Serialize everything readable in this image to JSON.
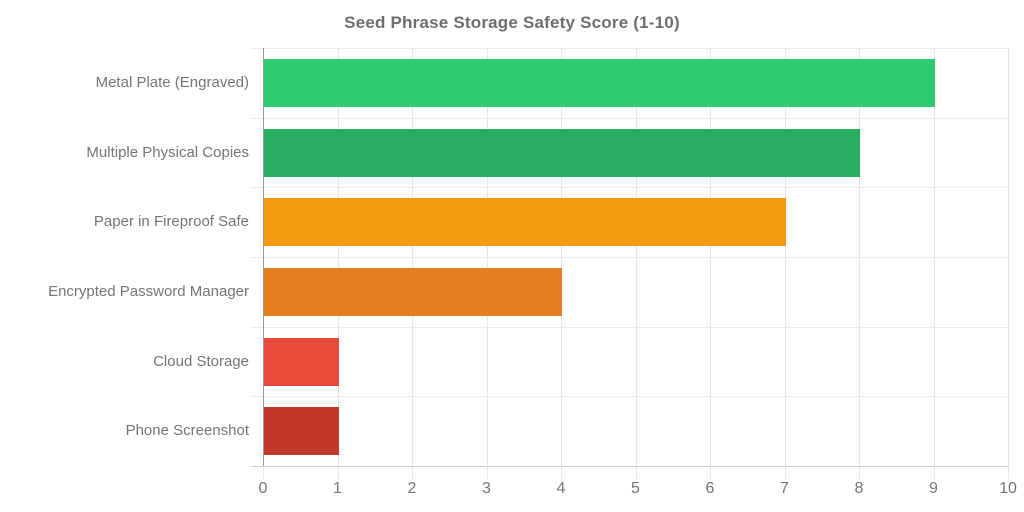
{
  "chart_data": {
    "type": "bar",
    "orientation": "horizontal",
    "title": "Seed Phrase Storage Safety Score (1-10)",
    "categories": [
      "Metal Plate (Engraved)",
      "Multiple Physical Copies",
      "Paper in Fireproof Safe",
      "Encrypted Password Manager",
      "Cloud Storage",
      "Phone Screenshot"
    ],
    "values": [
      9,
      8,
      7,
      4,
      1,
      1
    ],
    "bar_colors": [
      "#2ecc71",
      "#27ae60",
      "#f39c12",
      "#e67e22",
      "#e74c3c",
      "#c0392b"
    ],
    "xlabel": "",
    "ylabel": "",
    "xlim": [
      0,
      10
    ],
    "x_ticks": [
      0,
      1,
      2,
      3,
      4,
      5,
      6,
      7,
      8,
      9,
      10
    ],
    "grid": true,
    "legend": false
  },
  "styles": {
    "background": "#ffffff",
    "title_color": "#6e6e6e",
    "label_color": "#757575",
    "tick_color": "#757575",
    "grid_color": "#e6e6e6",
    "band_line_color": "#ececec",
    "baseline_color": "#cccccc",
    "axis_line_color": "#999999"
  }
}
